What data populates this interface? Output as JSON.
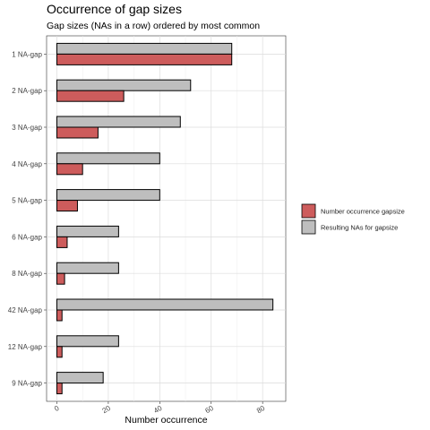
{
  "chart_data": {
    "type": "bar",
    "orientation": "horizontal",
    "title": "Occurrence of gap sizes",
    "subtitle": "Gap sizes (NAs in a row) ordered by most common",
    "xlabel": "Number occurrence",
    "ylabel": "",
    "xlim": [
      -4,
      89
    ],
    "x_ticks": [
      0,
      20,
      40,
      60,
      80
    ],
    "grid": true,
    "legend_position": "right",
    "categories": [
      "1 NA-gap",
      "2 NA-gap",
      "3 NA-gap",
      "4 NA-gap",
      "5 NA-gap",
      "6 NA-gap",
      "8 NA-gap",
      "42 NA-gap",
      "12 NA-gap",
      "9 NA-gap"
    ],
    "series": [
      {
        "name": "Number occurrence gapsize",
        "color": "#cd5c5c",
        "values": [
          68,
          26,
          16,
          10,
          8,
          4,
          3,
          2,
          2,
          2
        ]
      },
      {
        "name": "Resulting NAs for gapsize",
        "color": "#bebebe",
        "values": [
          68,
          52,
          48,
          40,
          40,
          24,
          24,
          84,
          24,
          18
        ]
      }
    ]
  }
}
